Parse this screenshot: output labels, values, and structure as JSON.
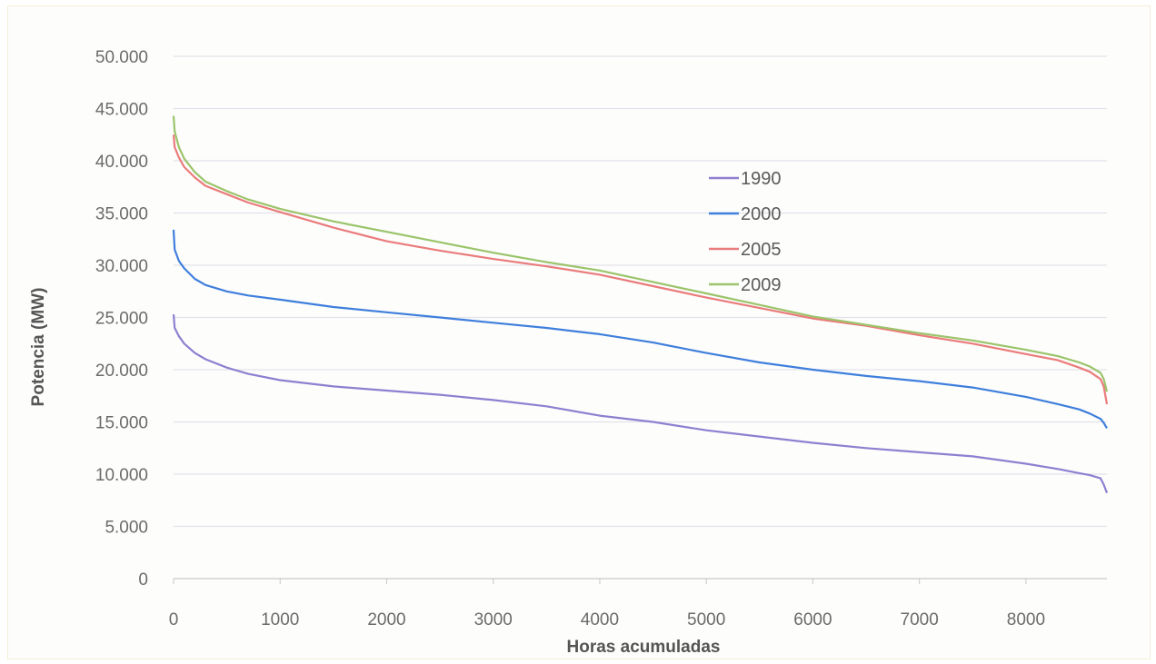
{
  "chart_data": {
    "type": "line",
    "title": "",
    "xlabel": "Horas acumuladas",
    "ylabel": "Potencia (MW)",
    "xlim": [
      0,
      8760
    ],
    "ylim": [
      0,
      50000
    ],
    "x_ticks": [
      0,
      1000,
      2000,
      3000,
      4000,
      5000,
      6000,
      7000,
      8000
    ],
    "x_tick_labels": [
      "0",
      "1000",
      "2000",
      "3000",
      "4000",
      "5000",
      "6000",
      "7000",
      "8000"
    ],
    "y_ticks": [
      0,
      5000,
      10000,
      15000,
      20000,
      25000,
      30000,
      35000,
      40000,
      45000,
      50000
    ],
    "y_tick_labels": [
      "0",
      "5.000",
      "10.000",
      "15.000",
      "20.000",
      "25.000",
      "30.000",
      "35.000",
      "40.000",
      "45.000",
      "50.000"
    ],
    "grid": true,
    "legend_position": "right-center",
    "x": [
      0,
      10,
      50,
      100,
      200,
      300,
      500,
      700,
      1000,
      1500,
      2000,
      2500,
      3000,
      3500,
      4000,
      4500,
      5000,
      5500,
      6000,
      6500,
      7000,
      7500,
      8000,
      8300,
      8500,
      8600,
      8700,
      8730,
      8760
    ],
    "series": [
      {
        "name": "1990",
        "color": "#8f7fd0",
        "values": [
          25300,
          24000,
          23200,
          22500,
          21600,
          21000,
          20200,
          19600,
          19000,
          18400,
          18000,
          17600,
          17100,
          16500,
          15600,
          15000,
          14200,
          13600,
          13000,
          12500,
          12100,
          11700,
          11000,
          10500,
          10100,
          9900,
          9600,
          9000,
          8200
        ]
      },
      {
        "name": "2000",
        "color": "#3f7fdc",
        "values": [
          33400,
          31500,
          30400,
          29700,
          28700,
          28100,
          27500,
          27100,
          26700,
          26000,
          25500,
          25000,
          24500,
          24000,
          23400,
          22600,
          21600,
          20700,
          20000,
          19400,
          18900,
          18300,
          17400,
          16700,
          16200,
          15800,
          15300,
          14900,
          14400
        ]
      },
      {
        "name": "2005",
        "color": "#ea7b7b",
        "values": [
          42500,
          41300,
          40300,
          39400,
          38400,
          37600,
          36800,
          36000,
          35100,
          33600,
          32300,
          31400,
          30600,
          29900,
          29100,
          28000,
          26900,
          25900,
          24900,
          24200,
          23300,
          22500,
          21500,
          20900,
          20200,
          19800,
          19100,
          18400,
          16700
        ]
      },
      {
        "name": "2009",
        "color": "#9bc46a",
        "values": [
          44300,
          42800,
          41300,
          40200,
          38900,
          38000,
          37100,
          36300,
          35400,
          34200,
          33200,
          32200,
          31200,
          30300,
          29500,
          28400,
          27300,
          26200,
          25100,
          24300,
          23500,
          22800,
          21900,
          21300,
          20700,
          20300,
          19700,
          19100,
          17900
        ]
      }
    ]
  }
}
